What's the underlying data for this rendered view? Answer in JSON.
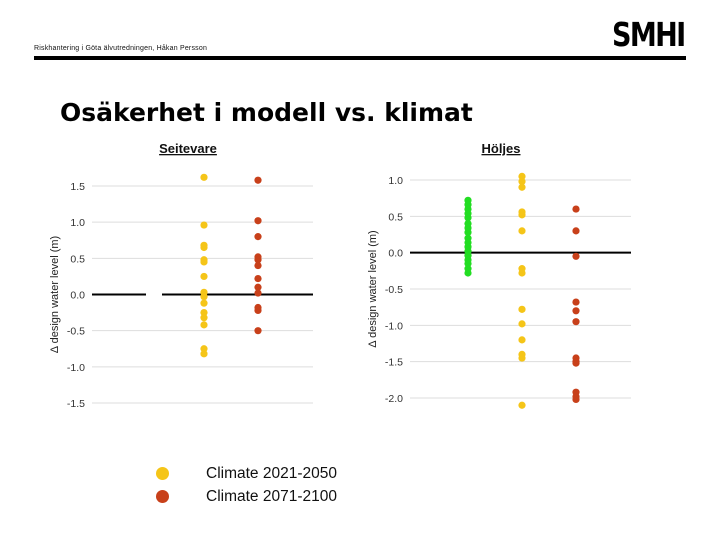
{
  "header": {
    "subtitle": "Riskhantering i Göta älvutredningen, Håkan Persson",
    "logo": "SMHI"
  },
  "slide": {
    "title": "Osäkerhet i modell vs. klimat"
  },
  "colors": {
    "climate_2021_2050": "#f5c518",
    "climate_2071_2100": "#c8401a",
    "model": "#22dd22",
    "grid": "#dddddd",
    "axis": "#555555"
  },
  "legend": {
    "items": [
      {
        "label": "Climate 2021-2050"
      },
      {
        "label": "Climate 2071-2100"
      }
    ]
  },
  "chart_data": [
    {
      "type": "scatter",
      "title": "Seitevare",
      "ylabel": "Δ design water level (m)",
      "ylim": [
        -1.5,
        1.5
      ],
      "yticks": [
        "1.5",
        "1.0",
        "0.5",
        "0.0",
        "-0.5",
        "-1.0",
        "-1.5"
      ],
      "grid": true,
      "series": [
        {
          "name": "Climate 2021-2050",
          "values": [
            1.62,
            0.96,
            0.68,
            0.65,
            0.48,
            0.45,
            0.25,
            0.03,
            -0.03,
            -0.12,
            -0.25,
            -0.32,
            -0.42,
            -0.75,
            -0.82
          ]
        },
        {
          "name": "Climate 2071-2100",
          "values": [
            1.58,
            1.02,
            0.8,
            0.52,
            0.48,
            0.4,
            0.22,
            0.1,
            0.02,
            -0.18,
            -0.22,
            -0.5
          ]
        }
      ]
    },
    {
      "type": "scatter",
      "title": "Höljes",
      "ylabel": "Δ design water level (m)",
      "ylim": [
        -2.0,
        1.0
      ],
      "yticks": [
        "1.0",
        "0.5",
        "0.0",
        "-0.5",
        "-1.0",
        "-1.5",
        "-2.0"
      ],
      "grid": true,
      "series": [
        {
          "values": [
            0.72,
            0.66,
            0.6,
            0.54,
            0.48,
            0.4,
            0.34,
            0.28,
            0.2,
            0.14,
            0.08,
            0.02,
            -0.04,
            -0.1,
            -0.15,
            -0.22,
            -0.28
          ]
        },
        {
          "name": "Climate 2021-2050",
          "values": [
            1.05,
            0.98,
            0.9,
            0.56,
            0.52,
            0.3,
            -0.22,
            -0.28,
            -0.78,
            -0.98,
            -1.2,
            -1.4,
            -1.45,
            -2.1
          ]
        },
        {
          "name": "Climate 2071-2100",
          "values": [
            0.6,
            0.3,
            -0.05,
            -0.68,
            -0.8,
            -0.95,
            -1.45,
            -1.5,
            -1.52,
            -1.92,
            -1.98,
            -2.02
          ]
        }
      ]
    }
  ]
}
